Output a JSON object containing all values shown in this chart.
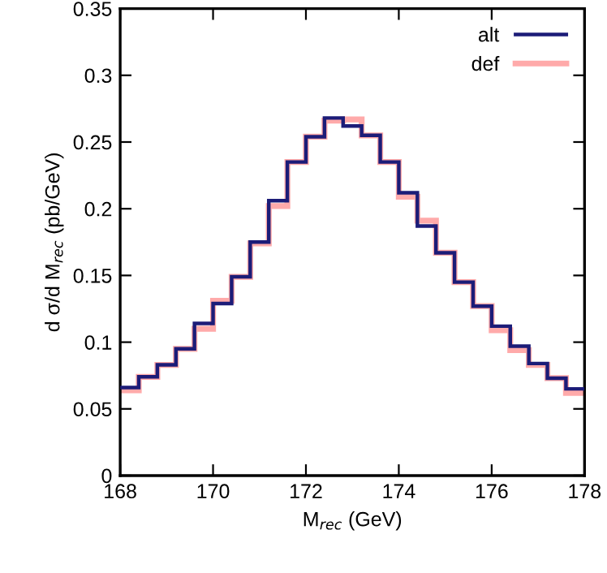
{
  "chart_data": {
    "type": "histogram",
    "xlabel": "M$_{rec}$ (GeV)",
    "ylabel": "d σ/d M$_{rec}$ (pb/GeV)",
    "bins": [
      168,
      168.4,
      168.8,
      169.2,
      169.6,
      170,
      170.4,
      170.8,
      171.2,
      171.6,
      172,
      172.4,
      172.8,
      173.2,
      173.6,
      174,
      174.4,
      174.8,
      175.2,
      175.6,
      176,
      176.4,
      176.8,
      177.2,
      177.6,
      178
    ],
    "series": [
      {
        "name": "alt",
        "color": "#1c1c78",
        "values": [
          0.066,
          0.074,
          0.083,
          0.095,
          0.114,
          0.129,
          0.149,
          0.175,
          0.206,
          0.235,
          0.254,
          0.268,
          0.262,
          0.255,
          0.235,
          0.212,
          0.187,
          0.167,
          0.145,
          0.127,
          0.112,
          0.097,
          0.084,
          0.073,
          0.065
        ]
      },
      {
        "name": "def",
        "color": "#ffaaaa",
        "values": [
          0.064,
          0.074,
          0.083,
          0.095,
          0.11,
          0.131,
          0.149,
          0.174,
          0.202,
          0.235,
          0.254,
          0.266,
          0.267,
          0.255,
          0.235,
          0.209,
          0.191,
          0.167,
          0.145,
          0.127,
          0.109,
          0.094,
          0.083,
          0.073,
          0.062
        ]
      }
    ],
    "xlim": [
      168,
      178
    ],
    "ylim": [
      0,
      0.35
    ],
    "xticks": [
      168,
      170,
      172,
      174,
      176,
      178
    ],
    "yticks": [
      0,
      0.05,
      0.1,
      0.15,
      0.2,
      0.25,
      0.3,
      0.35
    ],
    "grid": false,
    "legend": "top right"
  }
}
